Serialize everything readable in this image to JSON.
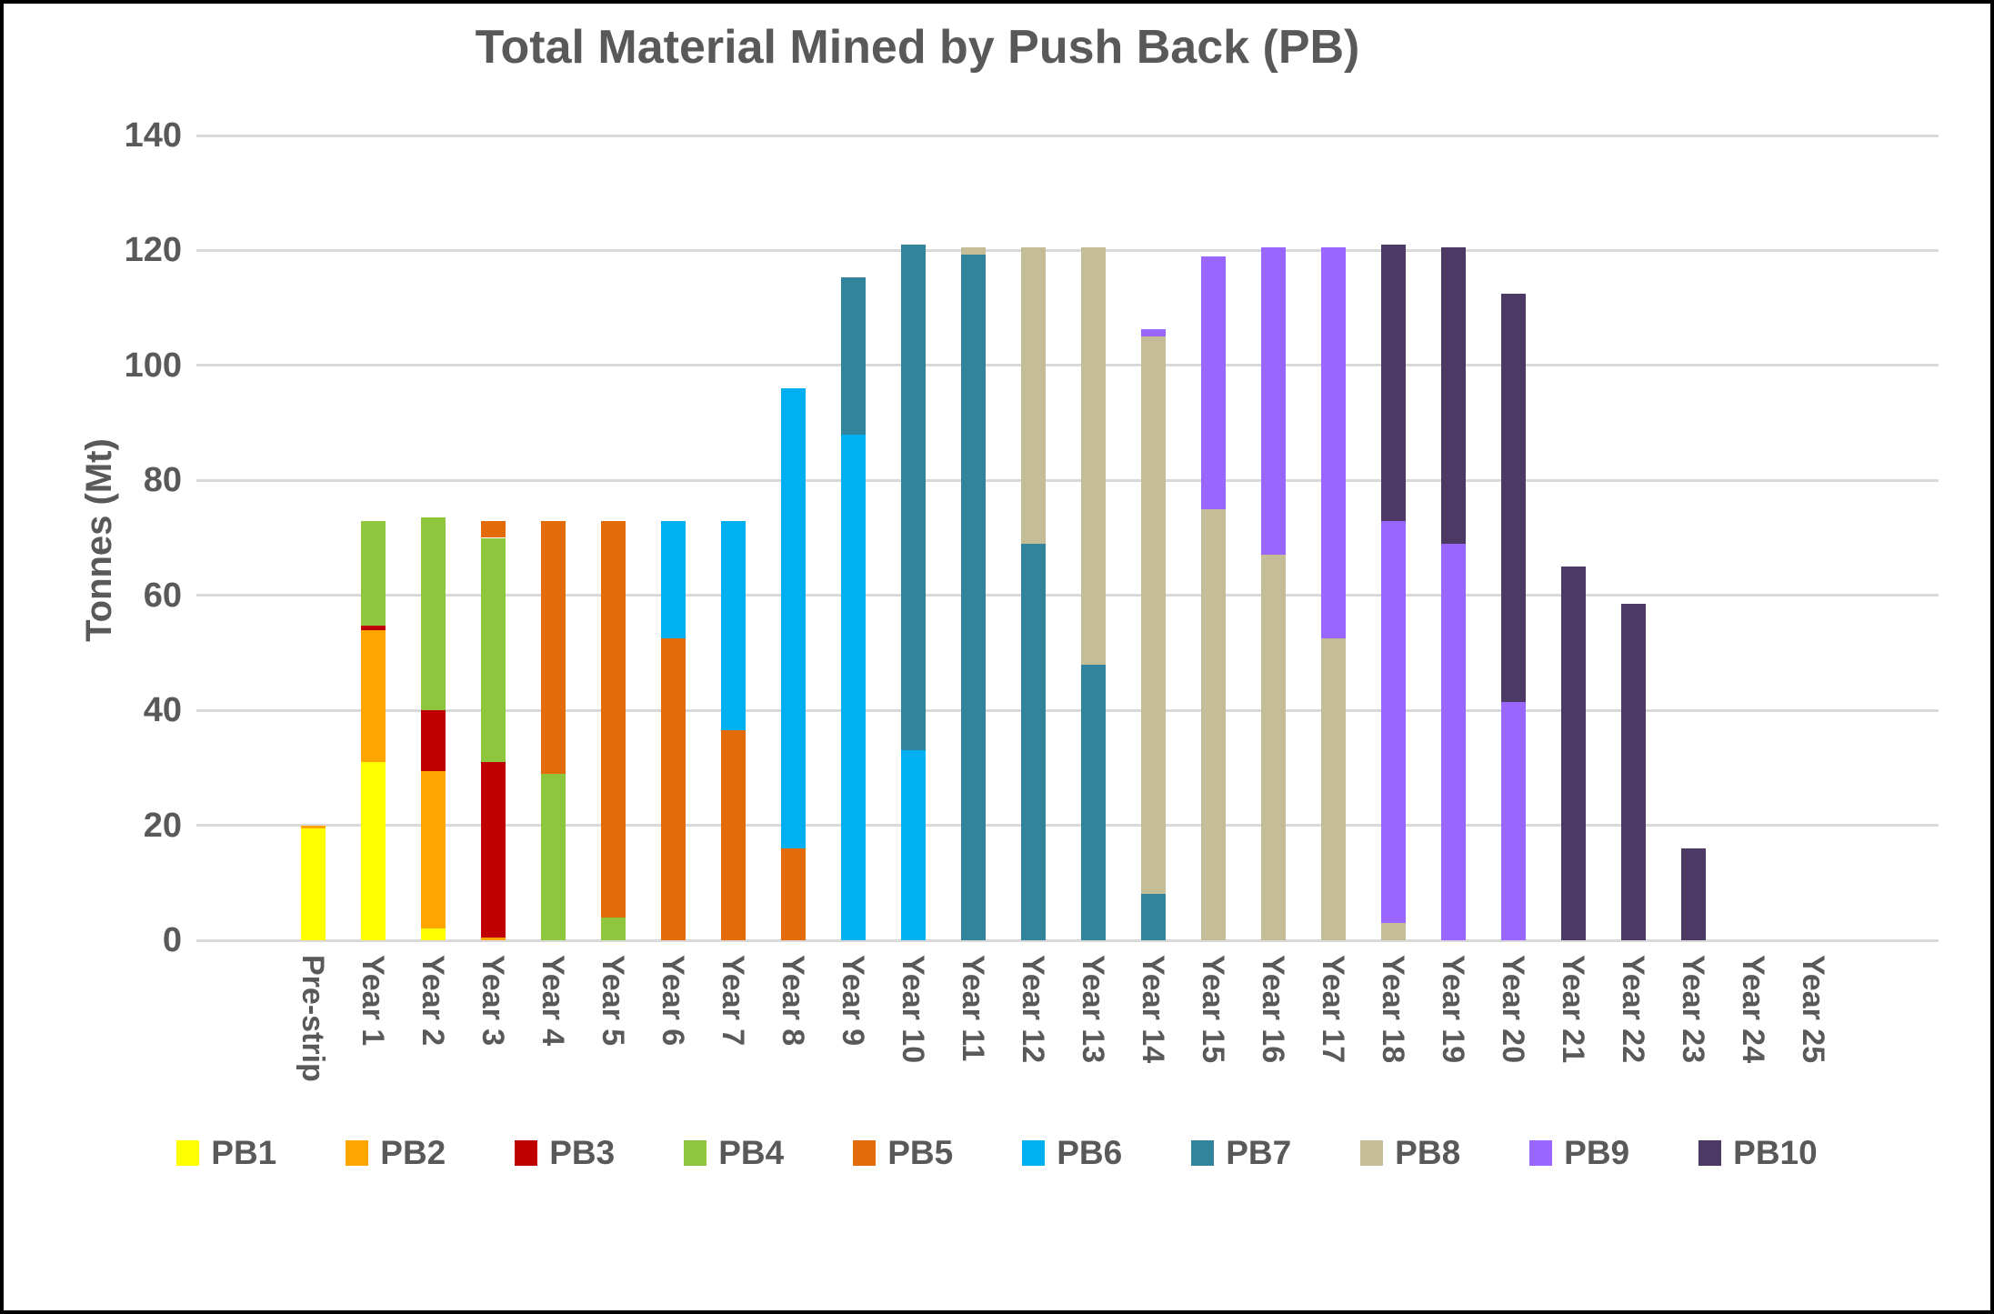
{
  "title": "Total Material Mined by Push Back (PB)",
  "colors": {
    "text": "#595959",
    "gridline": "#d9d9d9",
    "background": "#ffffff",
    "frame_border": "#000000"
  },
  "chart_data": {
    "type": "bar",
    "stacked": true,
    "title": "Total Material Mined by Push Back (PB)",
    "xlabel": "",
    "ylabel": "Tonnes (Mt)",
    "ylim": [
      0,
      140
    ],
    "yticks": [
      0,
      20,
      40,
      60,
      80,
      100,
      120,
      140
    ],
    "grid": true,
    "legend_position": "bottom",
    "categories": [
      "Pre-strip",
      "Year 1",
      "Year 2",
      "Year 3",
      "Year 4",
      "Year 5",
      "Year 6",
      "Year 7",
      "Year 8",
      "Year 9",
      "Year 10",
      "Year 11",
      "Year 12",
      "Year 13",
      "Year 14",
      "Year 15",
      "Year 16",
      "Year 17",
      "Year 18",
      "Year 19",
      "Year 20",
      "Year 21",
      "Year 22",
      "Year 23",
      "Year 24",
      "Year 25"
    ],
    "series": [
      {
        "name": "PB1",
        "color": "#FFFF00",
        "values": [
          19.5,
          31,
          2,
          0,
          0,
          0,
          0,
          0,
          0,
          0,
          0,
          0,
          0,
          0,
          0,
          0,
          0,
          0,
          0,
          0,
          0,
          0,
          0,
          0,
          0,
          0
        ]
      },
      {
        "name": "PB2",
        "color": "#FFA500",
        "values": [
          0.5,
          23,
          27.5,
          0.5,
          0,
          0,
          0,
          0,
          0,
          0,
          0,
          0,
          0,
          0,
          0,
          0,
          0,
          0,
          0,
          0,
          0,
          0,
          0,
          0,
          0,
          0
        ]
      },
      {
        "name": "PB3",
        "color": "#C00000",
        "values": [
          0,
          0.7,
          10.5,
          30.5,
          0,
          0,
          0,
          0,
          0,
          0,
          0,
          0,
          0,
          0,
          0,
          0,
          0,
          0,
          0,
          0,
          0,
          0,
          0,
          0,
          0,
          0
        ]
      },
      {
        "name": "PB4",
        "color": "#8EC63D",
        "values": [
          0,
          18.3,
          33.5,
          39,
          29,
          4,
          0,
          0,
          0,
          0,
          0,
          0,
          0,
          0,
          0,
          0,
          0,
          0,
          0,
          0,
          0,
          0,
          0,
          0,
          0,
          0
        ]
      },
      {
        "name": "PB5",
        "color": "#E36C09",
        "values": [
          0,
          0,
          0,
          3,
          44,
          69,
          52.5,
          36.5,
          16,
          0,
          0,
          0,
          0,
          0,
          0,
          0,
          0,
          0,
          0,
          0,
          0,
          0,
          0,
          0,
          0,
          0
        ]
      },
      {
        "name": "PB6",
        "color": "#00B0F0",
        "values": [
          0,
          0,
          0,
          0,
          0,
          0,
          20.5,
          36.5,
          80,
          88,
          33,
          0,
          0,
          0,
          0,
          0,
          0,
          0,
          0,
          0,
          0,
          0,
          0,
          0,
          0,
          0
        ]
      },
      {
        "name": "PB7",
        "color": "#31849B",
        "values": [
          0,
          0,
          0,
          0,
          0,
          0,
          0,
          0,
          0,
          27.3,
          88,
          119.3,
          69,
          48,
          8,
          0,
          0,
          0,
          0,
          0,
          0,
          0,
          0,
          0,
          0,
          0
        ]
      },
      {
        "name": "PB8",
        "color": "#C4BD97",
        "values": [
          0,
          0,
          0,
          0,
          0,
          0,
          0,
          0,
          0,
          0,
          0,
          1.2,
          51.5,
          72.5,
          97,
          75,
          67,
          52.5,
          3,
          0,
          0,
          0,
          0,
          0,
          0,
          0
        ]
      },
      {
        "name": "PB9",
        "color": "#9966FF",
        "values": [
          0,
          0,
          0,
          0,
          0,
          0,
          0,
          0,
          0,
          0,
          0,
          0,
          0,
          0,
          1.3,
          44,
          53.5,
          68,
          70,
          69,
          41.5,
          0,
          0,
          0,
          0,
          0
        ]
      },
      {
        "name": "PB10",
        "color": "#4C3A64",
        "values": [
          0,
          0,
          0,
          0,
          0,
          0,
          0,
          0,
          0,
          0,
          0,
          0,
          0,
          0,
          0,
          0,
          0,
          0,
          48,
          51.5,
          71,
          65,
          58.5,
          16,
          0,
          0
        ]
      }
    ]
  }
}
